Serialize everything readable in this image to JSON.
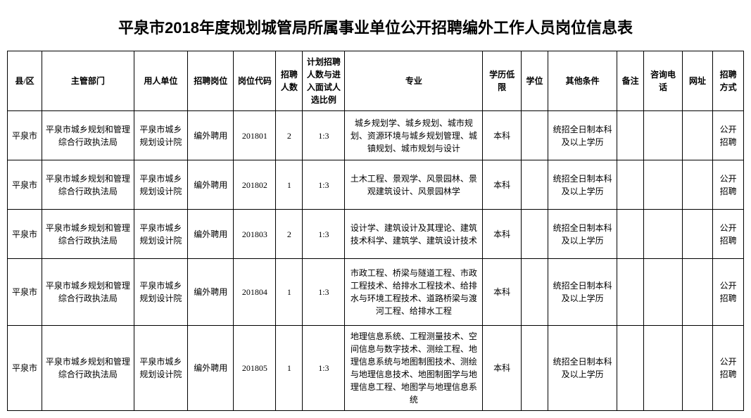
{
  "title": "平泉市2018年度规划城管局所属事业单位公开招聘编外工作人员岗位信息表",
  "headers": {
    "county": "县/区",
    "dept": "主管部门",
    "employer": "用人单位",
    "position": "招聘岗位",
    "code": "岗位代码",
    "count": "招聘人数",
    "ratio": "计划招聘人数与进入面试人选比例",
    "major": "专业",
    "edu": "学历低限",
    "degree": "学位",
    "other": "其他条件",
    "remark": "备注",
    "phone": "咨询电话",
    "url": "网址",
    "method": "招聘方式"
  },
  "rows": [
    {
      "county": "平泉市",
      "dept": "平泉市城乡规划和管理综合行政执法局",
      "employer": "平泉市城乡规划设计院",
      "position": "编外聘用",
      "code": "201801",
      "count": "2",
      "ratio": "1:3",
      "major": "城乡规划学、城乡规划、城市规划、资源环境与城乡规划管理、城镇规划、城市规划与设计",
      "edu": "本科",
      "degree": "",
      "other": "统招全日制本科及以上学历",
      "remark": "",
      "phone": "",
      "url": "",
      "method": "公开招聘"
    },
    {
      "county": "平泉市",
      "dept": "平泉市城乡规划和管理综合行政执法局",
      "employer": "平泉市城乡规划设计院",
      "position": "编外聘用",
      "code": "201802",
      "count": "1",
      "ratio": "1:3",
      "major": "土木工程、景观学、风景园林、景观建筑设计、风景园林学",
      "edu": "本科",
      "degree": "",
      "other": "统招全日制本科及以上学历",
      "remark": "",
      "phone": "",
      "url": "",
      "method": "公开招聘"
    },
    {
      "county": "平泉市",
      "dept": "平泉市城乡规划和管理综合行政执法局",
      "employer": "平泉市城乡规划设计院",
      "position": "编外聘用",
      "code": "201803",
      "count": "2",
      "ratio": "1:3",
      "major": "设计学、建筑设计及其理论、建筑技术科学、建筑学、建筑设计技术",
      "edu": "本科",
      "degree": "",
      "other": "统招全日制本科及以上学历",
      "remark": "",
      "phone": "",
      "url": "",
      "method": "公开招聘"
    },
    {
      "county": "平泉市",
      "dept": "平泉市城乡规划和管理综合行政执法局",
      "employer": "平泉市城乡规划设计院",
      "position": "编外聘用",
      "code": "201804",
      "count": "1",
      "ratio": "1:3",
      "major": "市政工程、桥梁与隧道工程、市政工程技术、给排水工程技术、给排水与环境工程技术、道路桥梁与渡河工程、给排水工程",
      "edu": "本科",
      "degree": "",
      "other": "统招全日制本科及以上学历",
      "remark": "",
      "phone": "",
      "url": "",
      "method": "公开招聘"
    },
    {
      "county": "平泉市",
      "dept": "平泉市城乡规划和管理综合行政执法局",
      "employer": "平泉市城乡规划设计院",
      "position": "编外聘用",
      "code": "201805",
      "count": "1",
      "ratio": "1:3",
      "major": "地理信息系统、工程测量技术、空间信息与数字技术、测绘工程、地理信息系统与地图制图技术、测绘与地理信息技术、地图制图学与地理信息工程、地图学与地理信息系统",
      "edu": "本科",
      "degree": "",
      "other": "统招全日制本科及以上学历",
      "remark": "",
      "phone": "",
      "url": "",
      "method": "公开招聘"
    }
  ],
  "styling": {
    "background_color": "#ffffff",
    "border_color": "#000000",
    "text_color": "#000000",
    "title_fontsize": 22,
    "cell_fontsize": 12,
    "font_family": "SimSun"
  }
}
